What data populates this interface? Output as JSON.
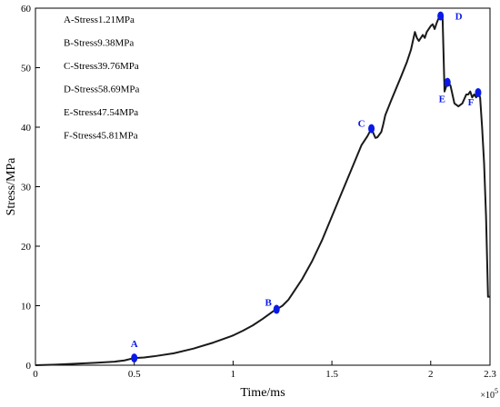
{
  "chart_data": {
    "type": "line",
    "title": "",
    "xlabel": "Time/ms",
    "ylabel": "Stress/MPa",
    "x_multiplier_label": "×10",
    "x_multiplier_exp": "5",
    "xlim": [
      0,
      2.3
    ],
    "ylim": [
      0,
      60
    ],
    "x_ticks": [
      0,
      0.5,
      1,
      1.5,
      2,
      2.3
    ],
    "x_tick_labels": [
      "0",
      "0.5",
      "1",
      "1.5",
      "2",
      "2.3"
    ],
    "y_ticks": [
      0,
      10,
      20,
      30,
      40,
      50,
      60
    ],
    "y_tick_labels": [
      "0",
      "10",
      "20",
      "30",
      "40",
      "50",
      "60"
    ],
    "grid": false,
    "legend_position": "top-left",
    "line_color": "#1a1a1a",
    "marker_color": "#0a1ae6",
    "series": [
      {
        "x": [
          0,
          0.1,
          0.2,
          0.3,
          0.4,
          0.45,
          0.5,
          0.55,
          0.6,
          0.7,
          0.8,
          0.9,
          1.0,
          1.05,
          1.1,
          1.15,
          1.2,
          1.22,
          1.25,
          1.28,
          1.3,
          1.35,
          1.4,
          1.45,
          1.5,
          1.55,
          1.6,
          1.65,
          1.68,
          1.7,
          1.72,
          1.73,
          1.75,
          1.76,
          1.77,
          1.8,
          1.85,
          1.88,
          1.9,
          1.91,
          1.92,
          1.93,
          1.94,
          1.96,
          1.97,
          1.98,
          1.99,
          2.0,
          2.01,
          2.02,
          2.03,
          2.04,
          2.05,
          2.053,
          2.06,
          2.07,
          2.085,
          2.1,
          2.12,
          2.14,
          2.16,
          2.18,
          2.19,
          2.2,
          2.21,
          2.22,
          2.23,
          2.24,
          2.25,
          2.26,
          2.27,
          2.28,
          2.29,
          2.3
        ],
        "y": [
          0,
          0.1,
          0.25,
          0.4,
          0.6,
          0.8,
          1.21,
          1.3,
          1.5,
          2.0,
          2.8,
          3.8,
          5.0,
          5.8,
          6.7,
          7.8,
          9.0,
          9.38,
          10.0,
          11.0,
          12.0,
          14.5,
          17.5,
          21.0,
          25.0,
          29.0,
          33.0,
          37.0,
          38.5,
          39.76,
          38.2,
          38.3,
          39.2,
          40.5,
          42.0,
          44.5,
          48.5,
          51.0,
          53.0,
          54.5,
          56.0,
          55.0,
          54.5,
          55.5,
          55.0,
          56.0,
          56.5,
          57.0,
          57.3,
          56.5,
          57.5,
          58.3,
          58.69,
          58.5,
          58.5,
          46.0,
          47.54,
          47.0,
          44.0,
          43.5,
          44.0,
          45.5,
          45.5,
          46.0,
          45.0,
          45.5,
          45.0,
          45.81,
          45.0,
          40.0,
          34.0,
          25.0,
          11.5,
          11.5
        ]
      }
    ],
    "points": [
      {
        "label": "A",
        "x": 0.5,
        "y": 1.21
      },
      {
        "label": "B",
        "x": 1.22,
        "y": 9.38
      },
      {
        "label": "C",
        "x": 1.7,
        "y": 39.76
      },
      {
        "label": "D",
        "x": 2.05,
        "y": 58.69
      },
      {
        "label": "E",
        "x": 2.085,
        "y": 47.54
      },
      {
        "label": "F",
        "x": 2.24,
        "y": 45.81
      }
    ],
    "legend": [
      "A-Stress1.21MPa",
      "B-Stress9.38MPa",
      "C-Stress39.76MPa",
      "D-Stress58.69MPa",
      "E-Stress47.54MPa",
      "F-Stress45.81MPa"
    ]
  }
}
